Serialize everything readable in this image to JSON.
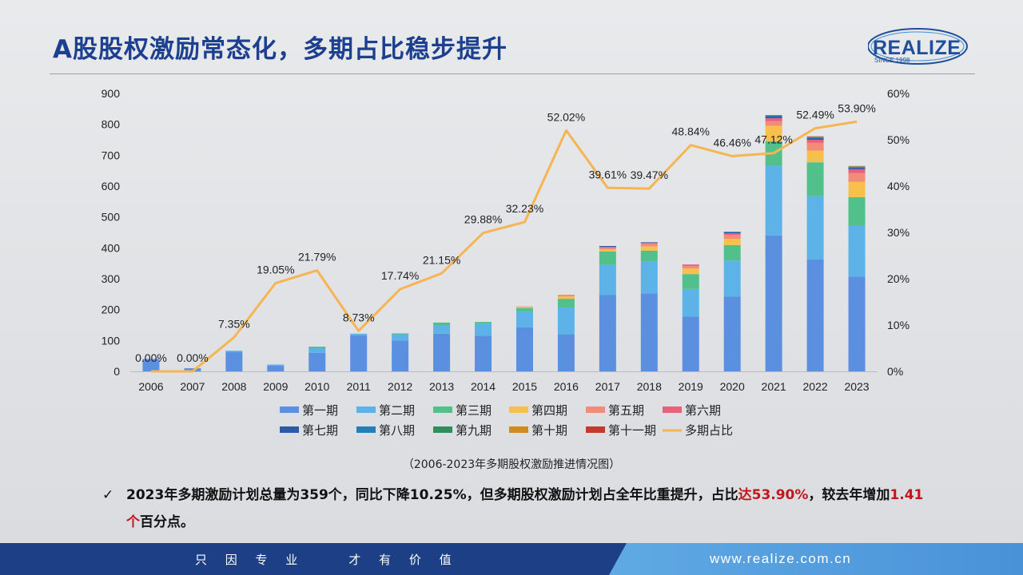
{
  "header": {
    "title": "A股股权激励常态化，多期占比稳步提升",
    "logo_text": "REALIZE",
    "logo_sub": "SINCE 1998"
  },
  "caption": "（2006-2023年多期股权激励推进情况图）",
  "bullet": {
    "check": "✓",
    "part1": "2023年多期激励计划总量为359个，同比下降10.25%，但多期股权激励计划占全年比重提升，占比",
    "highlight1": "达53.90%",
    "part2": "，较去年增加",
    "highlight2": "1.41个",
    "part3": "百分点。"
  },
  "footer": {
    "slogan": "只 因 专 业    才 有 价 值",
    "website": "www.realize.com.cn"
  },
  "chart_data": {
    "type": "bar",
    "stacked": true,
    "categories": [
      "2006",
      "2007",
      "2008",
      "2009",
      "2010",
      "2011",
      "2012",
      "2013",
      "2014",
      "2015",
      "2016",
      "2017",
      "2018",
      "2019",
      "2020",
      "2021",
      "2022",
      "2023"
    ],
    "y_left": {
      "min": 0,
      "max": 900,
      "ticks": [
        0,
        100,
        200,
        300,
        400,
        500,
        600,
        700,
        800,
        900
      ]
    },
    "y_right": {
      "min": 0,
      "max": 60,
      "ticks": [
        "0%",
        "10%",
        "20%",
        "30%",
        "40%",
        "50%",
        "60%"
      ]
    },
    "series": [
      {
        "name": "第一期",
        "color": "#5b8fe0",
        "values": [
          40,
          10,
          62,
          18,
          60,
          117,
          100,
          122,
          115,
          143,
          120,
          247,
          252,
          177,
          242,
          440,
          362,
          307
        ]
      },
      {
        "name": "第二期",
        "color": "#5db3e8",
        "values": [
          0,
          0,
          5,
          4,
          15,
          5,
          20,
          28,
          40,
          50,
          87,
          98,
          103,
          90,
          117,
          225,
          205,
          165
        ]
      },
      {
        "name": "第三期",
        "color": "#52c08a",
        "values": [
          0,
          0,
          0,
          0,
          5,
          0,
          3,
          8,
          5,
          12,
          28,
          43,
          36,
          48,
          50,
          80,
          110,
          92
        ]
      },
      {
        "name": "第四期",
        "color": "#f7c04c",
        "values": [
          0,
          0,
          0,
          0,
          0,
          0,
          0,
          0,
          0,
          3,
          8,
          7,
          14,
          18,
          20,
          50,
          38,
          50
        ]
      },
      {
        "name": "第五期",
        "color": "#f28b78",
        "values": [
          0,
          0,
          0,
          0,
          0,
          0,
          0,
          0,
          0,
          2,
          5,
          5,
          8,
          8,
          13,
          15,
          25,
          28
        ]
      },
      {
        "name": "第六期",
        "color": "#e8607a",
        "values": [
          0,
          0,
          0,
          0,
          0,
          0,
          0,
          0,
          0,
          0,
          0,
          3,
          3,
          5,
          5,
          10,
          10,
          12
        ]
      },
      {
        "name": "第七期",
        "color": "#2a5aa8",
        "values": [
          0,
          0,
          0,
          0,
          0,
          0,
          0,
          0,
          0,
          0,
          0,
          3,
          2,
          0,
          3,
          5,
          5,
          5
        ]
      },
      {
        "name": "第八期",
        "color": "#2380b5",
        "values": [
          0,
          0,
          0,
          0,
          0,
          0,
          0,
          0,
          0,
          0,
          0,
          0,
          0,
          0,
          2,
          3,
          2,
          2
        ]
      },
      {
        "name": "第九期",
        "color": "#2f8f5c",
        "values": [
          0,
          0,
          0,
          0,
          0,
          0,
          0,
          0,
          0,
          0,
          0,
          0,
          0,
          0,
          0,
          2,
          2,
          2
        ]
      },
      {
        "name": "第十期",
        "color": "#d28a1f",
        "values": [
          0,
          0,
          0,
          0,
          0,
          0,
          0,
          0,
          0,
          0,
          0,
          0,
          0,
          0,
          0,
          0,
          1,
          1
        ]
      },
      {
        "name": "第十一期",
        "color": "#c23a2a",
        "values": [
          0,
          0,
          0,
          0,
          0,
          0,
          0,
          0,
          0,
          0,
          0,
          0,
          0,
          0,
          0,
          0,
          1,
          1
        ]
      }
    ],
    "line": {
      "name": "多期占比",
      "color": "#f6b552",
      "values": [
        0.0,
        0.0,
        7.35,
        19.05,
        21.79,
        8.73,
        17.74,
        21.15,
        29.88,
        32.23,
        52.02,
        39.61,
        39.47,
        48.84,
        46.46,
        47.12,
        52.49,
        53.9
      ],
      "labels": [
        "0.00%",
        "0.00%",
        "7.35%",
        "19.05%",
        "21.79%",
        "8.73%",
        "17.74%",
        "21.15%",
        "29.88%",
        "32.23%",
        "52.02%",
        "39.61%",
        "39.47%",
        "48.84%",
        "46.46%",
        "47.12%",
        "52.49%",
        "53.90%"
      ]
    }
  }
}
